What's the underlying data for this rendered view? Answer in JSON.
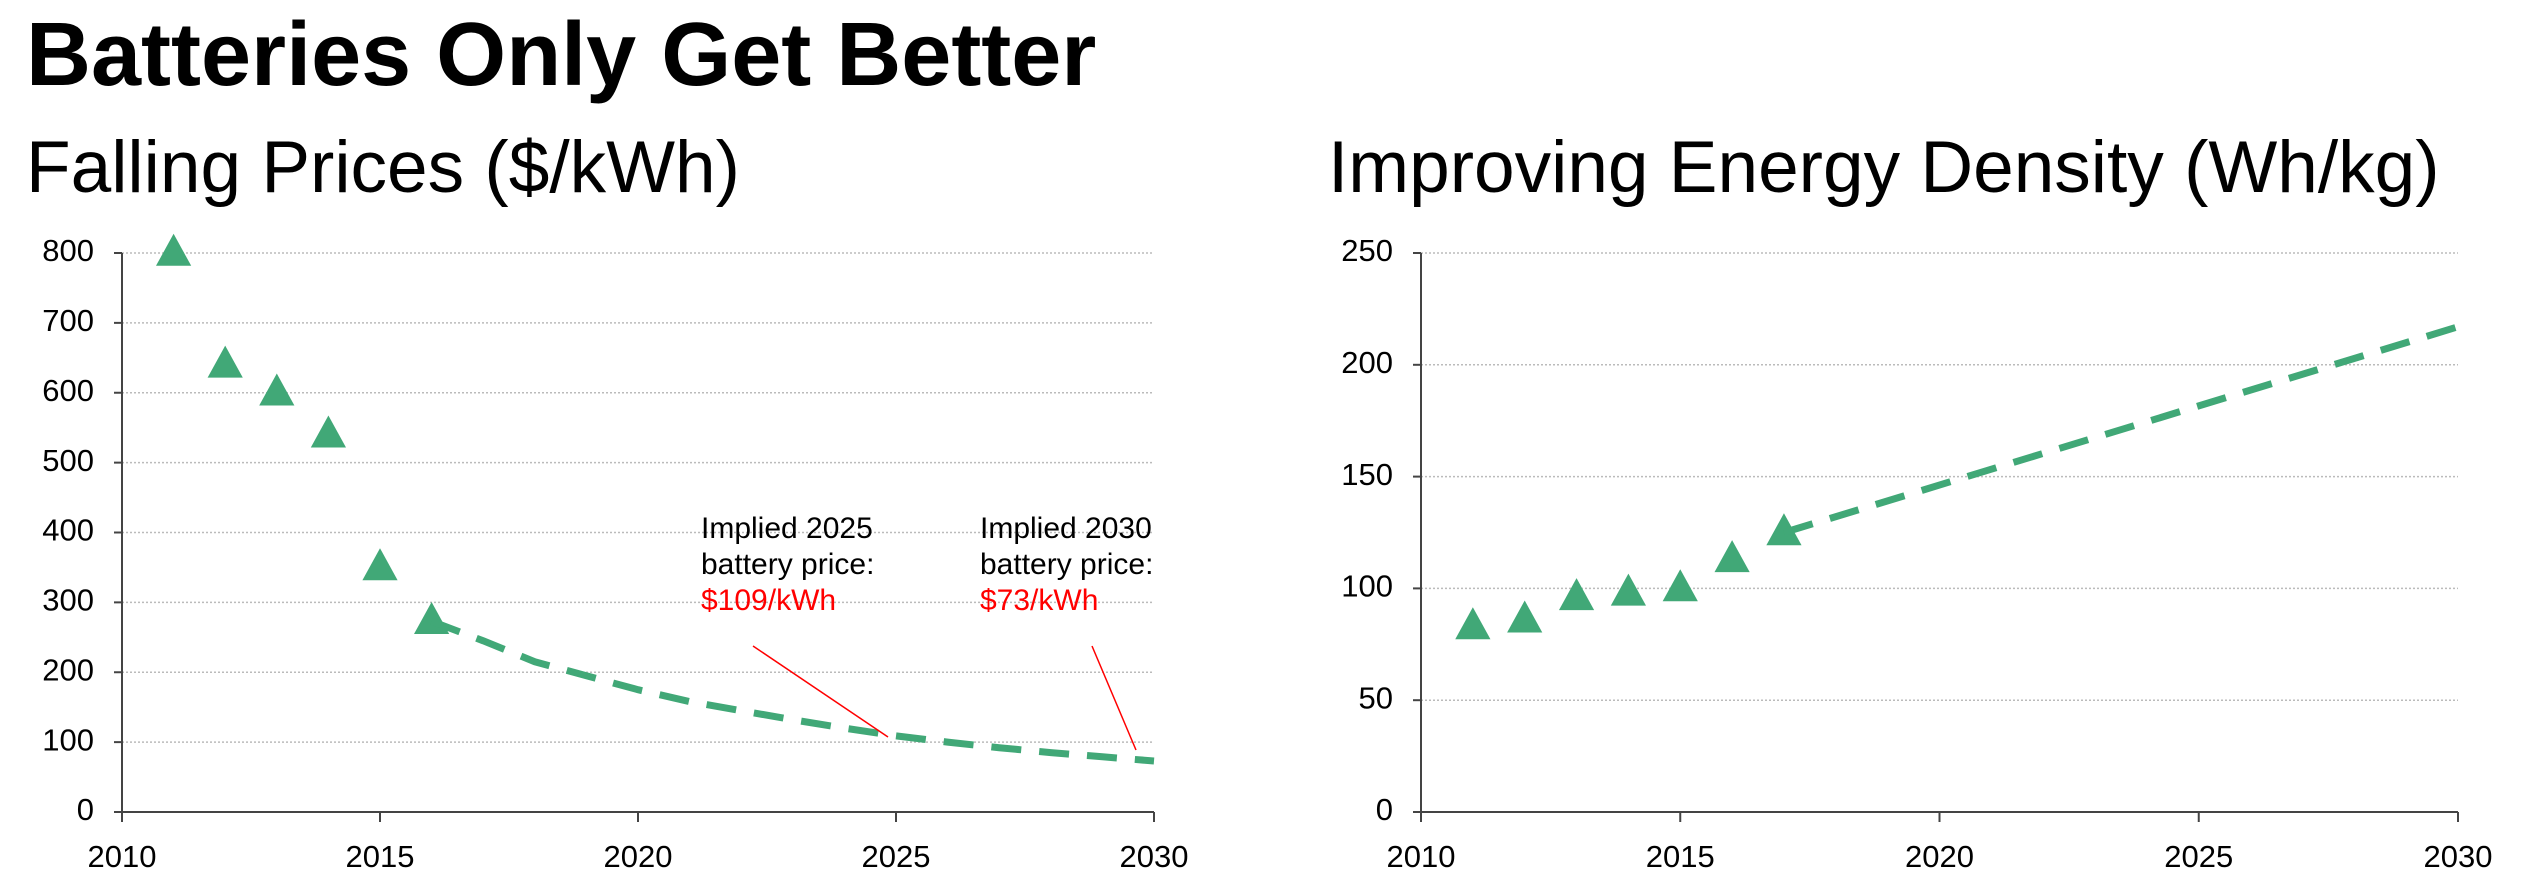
{
  "title": "Batteries Only Get Better",
  "chart_data": [
    {
      "type": "scatter",
      "subtitle": "Falling Prices ($/kWh)",
      "series": [
        {
          "marker": "triangle",
          "color": "#41a877",
          "x": [
            2011,
            2012,
            2013,
            2014,
            2015,
            2016
          ],
          "values": [
            800,
            640,
            600,
            540,
            350,
            273
          ]
        },
        {
          "line": "dashed",
          "color": "#41a877",
          "x": [
            2016,
            2017,
            2018,
            2019,
            2020,
            2021,
            2022,
            2023,
            2024,
            2025,
            2026,
            2027,
            2028,
            2029,
            2030
          ],
          "values": [
            273,
            245,
            215,
            195,
            175,
            158,
            145,
            132,
            120,
            109,
            100,
            92,
            85,
            79,
            73
          ]
        }
      ],
      "xlim": [
        2010,
        2030
      ],
      "xticks": [
        2010,
        2015,
        2020,
        2025,
        2030
      ],
      "ylim": [
        0,
        800
      ],
      "yticks": [
        0,
        100,
        200,
        300,
        400,
        500,
        600,
        700,
        800
      ],
      "grid": true,
      "annotations": [
        {
          "lines": [
            "Implied 2025",
            "battery price:"
          ],
          "highlight": "$109/kWh"
        },
        {
          "lines": [
            "Implied 2030",
            "battery price:"
          ],
          "highlight": "$73/kWh"
        }
      ]
    },
    {
      "type": "scatter",
      "subtitle": "Improving Energy Density (Wh/kg)",
      "series": [
        {
          "marker": "triangle",
          "color": "#41a877",
          "x": [
            2011,
            2012,
            2013,
            2014,
            2015,
            2016,
            2017
          ],
          "values": [
            83,
            86,
            96,
            98,
            100,
            113,
            125
          ]
        },
        {
          "line": "dashed",
          "color": "#41a877",
          "x": [
            2017,
            2030
          ],
          "values": [
            125,
            217
          ]
        }
      ],
      "xlim": [
        2010,
        2030
      ],
      "xticks": [
        2010,
        2015,
        2020,
        2025,
        2030
      ],
      "ylim": [
        0,
        250
      ],
      "yticks": [
        0,
        50,
        100,
        150,
        200,
        250
      ],
      "grid": true
    }
  ]
}
